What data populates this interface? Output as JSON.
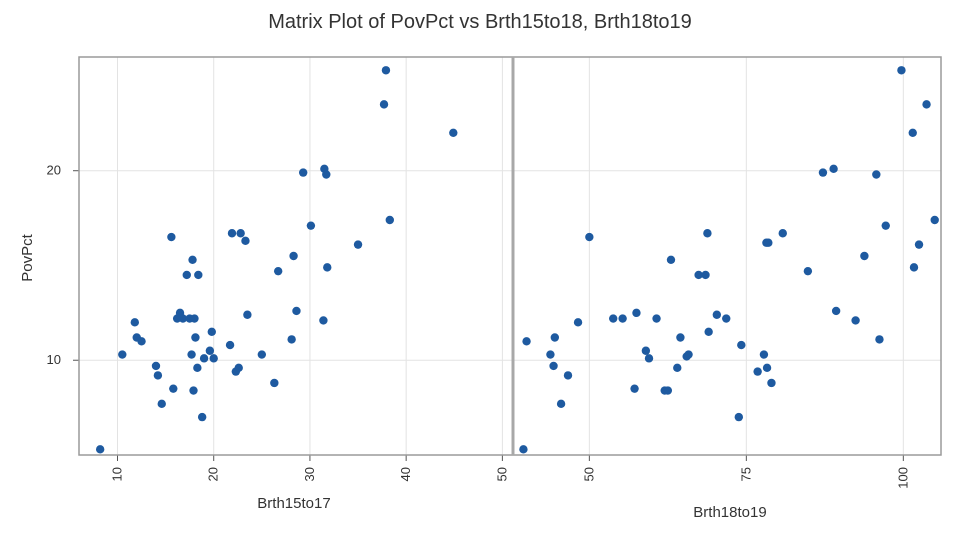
{
  "chart_data": {
    "type": "scatter",
    "title": "Matrix Plot of PovPct vs Brth15to18, Brth18to19",
    "ylabel": "PovPct",
    "ylim": [
      5,
      26
    ],
    "yticks": [
      10,
      20
    ],
    "grid": true,
    "panels": [
      {
        "xlabel": "Brth15to17",
        "xlim": [
          6,
          51
        ],
        "xticks": [
          10,
          20,
          30,
          40,
          50
        ],
        "points": [
          [
            8.2,
            5.3
          ],
          [
            10.5,
            10.3
          ],
          [
            11.8,
            12.0
          ],
          [
            12.0,
            11.2
          ],
          [
            12.5,
            11.0
          ],
          [
            14.0,
            9.7
          ],
          [
            14.2,
            9.2
          ],
          [
            14.6,
            7.7
          ],
          [
            15.6,
            16.5
          ],
          [
            15.8,
            8.5
          ],
          [
            16.2,
            12.2
          ],
          [
            16.5,
            12.5
          ],
          [
            16.8,
            12.2
          ],
          [
            17.2,
            14.5
          ],
          [
            17.5,
            12.2
          ],
          [
            17.7,
            10.3
          ],
          [
            17.8,
            15.3
          ],
          [
            17.9,
            8.4
          ],
          [
            18.0,
            12.2
          ],
          [
            18.1,
            11.2
          ],
          [
            18.3,
            9.6
          ],
          [
            18.4,
            14.5
          ],
          [
            18.8,
            7.0
          ],
          [
            19.0,
            10.1
          ],
          [
            19.6,
            10.5
          ],
          [
            19.8,
            11.5
          ],
          [
            20.0,
            10.1
          ],
          [
            21.7,
            10.8
          ],
          [
            21.9,
            16.7
          ],
          [
            22.3,
            9.4
          ],
          [
            22.6,
            9.6
          ],
          [
            22.8,
            16.7
          ],
          [
            23.3,
            16.3
          ],
          [
            23.5,
            12.4
          ],
          [
            25.0,
            10.3
          ],
          [
            26.3,
            8.8
          ],
          [
            26.7,
            14.7
          ],
          [
            28.1,
            11.1
          ],
          [
            28.3,
            15.5
          ],
          [
            28.6,
            12.6
          ],
          [
            29.3,
            19.9
          ],
          [
            30.1,
            17.1
          ],
          [
            31.4,
            12.1
          ],
          [
            31.5,
            20.1
          ],
          [
            31.7,
            19.8
          ],
          [
            31.8,
            14.9
          ],
          [
            35.0,
            16.1
          ],
          [
            37.7,
            23.5
          ],
          [
            37.9,
            25.3
          ],
          [
            38.3,
            17.4
          ],
          [
            44.9,
            22.0
          ]
        ]
      },
      {
        "xlabel": "Brth18to19",
        "xlim": [
          38,
          106
        ],
        "xticks": [
          50,
          75,
          100
        ],
        "points": [
          [
            39.5,
            5.3
          ],
          [
            40.0,
            11.0
          ],
          [
            43.8,
            10.3
          ],
          [
            44.3,
            9.7
          ],
          [
            44.5,
            11.2
          ],
          [
            45.5,
            7.7
          ],
          [
            46.6,
            9.2
          ],
          [
            48.2,
            12.0
          ],
          [
            50.0,
            16.5
          ],
          [
            53.8,
            12.2
          ],
          [
            55.3,
            12.2
          ],
          [
            57.2,
            8.5
          ],
          [
            57.5,
            12.5
          ],
          [
            59.0,
            10.5
          ],
          [
            59.5,
            10.1
          ],
          [
            60.7,
            12.2
          ],
          [
            62.0,
            8.4
          ],
          [
            62.5,
            8.4
          ],
          [
            63.0,
            15.3
          ],
          [
            64.0,
            9.6
          ],
          [
            64.5,
            11.2
          ],
          [
            65.5,
            10.2
          ],
          [
            65.8,
            10.3
          ],
          [
            67.4,
            14.5
          ],
          [
            68.5,
            14.5
          ],
          [
            68.8,
            16.7
          ],
          [
            69.0,
            11.5
          ],
          [
            70.3,
            12.4
          ],
          [
            71.8,
            12.2
          ],
          [
            73.8,
            7.0
          ],
          [
            74.2,
            10.8
          ],
          [
            76.8,
            9.4
          ],
          [
            77.8,
            10.3
          ],
          [
            78.2,
            16.2
          ],
          [
            78.3,
            9.6
          ],
          [
            78.5,
            16.2
          ],
          [
            79.0,
            8.8
          ],
          [
            80.8,
            16.7
          ],
          [
            84.8,
            14.7
          ],
          [
            87.2,
            19.9
          ],
          [
            88.9,
            20.1
          ],
          [
            89.3,
            12.6
          ],
          [
            92.4,
            12.1
          ],
          [
            93.8,
            15.5
          ],
          [
            95.7,
            19.8
          ],
          [
            96.2,
            11.1
          ],
          [
            97.2,
            17.1
          ],
          [
            99.7,
            25.3
          ],
          [
            101.5,
            22.0
          ],
          [
            101.7,
            14.9
          ],
          [
            102.5,
            16.1
          ],
          [
            103.7,
            23.5
          ],
          [
            105.0,
            17.4
          ]
        ]
      }
    ]
  },
  "style": {
    "point_color": "#1e5aa0",
    "frame_color": "#9a9a9a",
    "grid_color": "#e3e3e3"
  }
}
